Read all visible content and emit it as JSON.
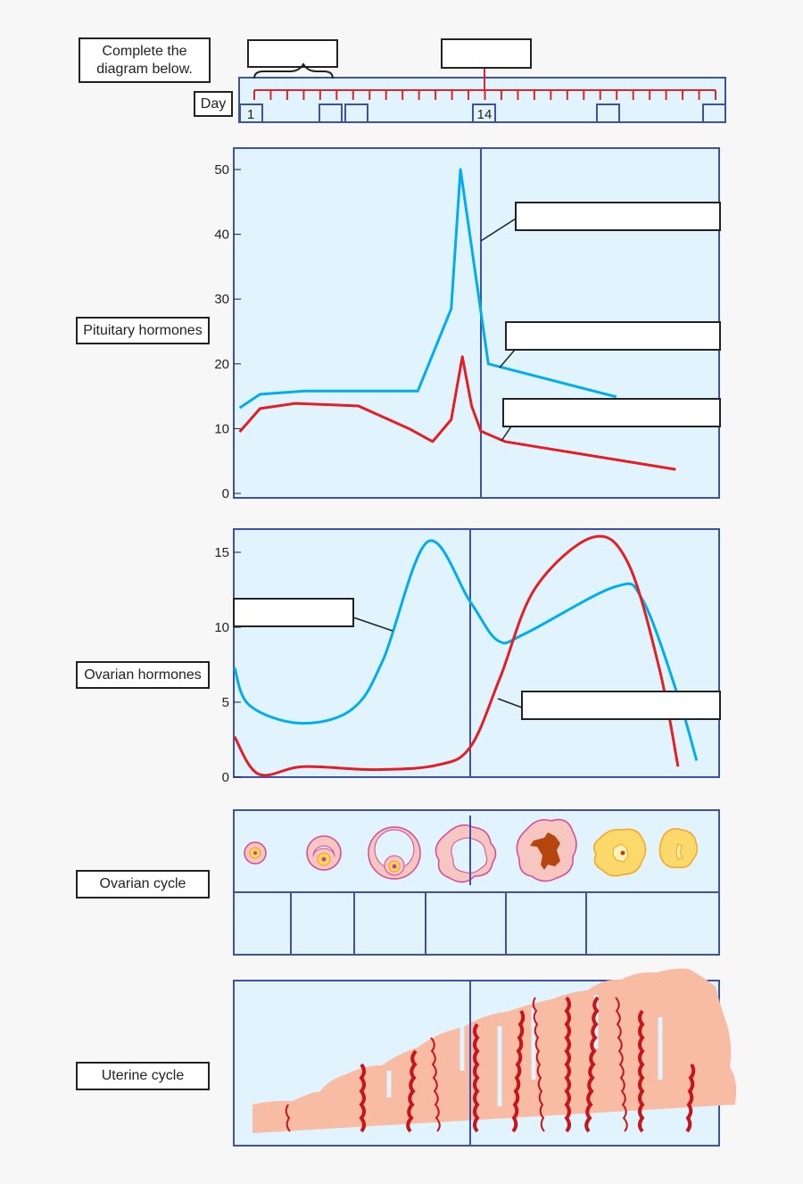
{
  "instruction": "Complete the diagram below.",
  "day_label": "Day",
  "day_markers": [
    "1",
    "14"
  ],
  "row_labels": {
    "pituitary": "Pituitary hormones",
    "ovarian": "Ovarian hormones",
    "ovarian_cycle": "Ovarian cycle",
    "uterine_cycle": "Uterine cycle"
  },
  "colors": {
    "blue_line": "#00aeef",
    "red_line": "#e31e24",
    "panel": "#e1f3fc",
    "border": "#3f51a5",
    "tissue": "#f8bba4",
    "vessel": "#c4161c"
  },
  "chart_data": [
    {
      "type": "line",
      "title": "",
      "xlabel": "Day",
      "ylabel": "",
      "ylim": [
        0,
        50
      ],
      "yticks": [
        "0",
        "10",
        "20",
        "30",
        "40",
        "50"
      ],
      "grid": false,
      "ovulation_day": 14,
      "series": [
        {
          "color": "#00aeef",
          "x": [
            1,
            2.1,
            4.5,
            10.6,
            12.4,
            12.9,
            14.4,
            21.3
          ],
          "values": [
            13.2,
            15.3,
            15.8,
            15.8,
            28.5,
            50,
            20,
            14.9
          ]
        },
        {
          "color": "#e31e24",
          "x": [
            1,
            2.1,
            4,
            7.4,
            10.2,
            11.4,
            12.4,
            13,
            13.5,
            14,
            15.3,
            24.5
          ],
          "values": [
            9.5,
            13.1,
            13.9,
            13.5,
            9.9,
            8,
            11.4,
            21.1,
            13.5,
            9.6,
            8,
            3.7
          ]
        }
      ]
    },
    {
      "type": "line",
      "title": "",
      "xlabel": "Day",
      "ylabel": "",
      "ylim": [
        0,
        16.5
      ],
      "yticks": [
        "0",
        "5",
        "10",
        "15"
      ],
      "grid": false,
      "ovulation_day": 14,
      "series": [
        {
          "color": "#00aeef",
          "x": [
            1.3,
            2.1,
            4.8,
            7.6,
            9.3,
            11.7,
            14,
            15.5,
            17,
            21.8,
            23.3,
            25.2,
            26.2
          ],
          "values": [
            7.3,
            4.8,
            3.6,
            4.5,
            7.8,
            15.7,
            11.7,
            9.1,
            9.6,
            12.7,
            11.8,
            5.4,
            1.1
          ]
        },
        {
          "color": "#e31e24",
          "x": [
            1.3,
            2.6,
            5,
            8.9,
            12.2,
            14,
            15.6,
            17.5,
            20.6,
            22.5,
            24.2,
            25.2
          ],
          "values": [
            2.7,
            0.2,
            0.7,
            0.5,
            0.8,
            2,
            6.6,
            12.6,
            16,
            14.3,
            7.2,
            0.7
          ]
        }
      ]
    }
  ]
}
